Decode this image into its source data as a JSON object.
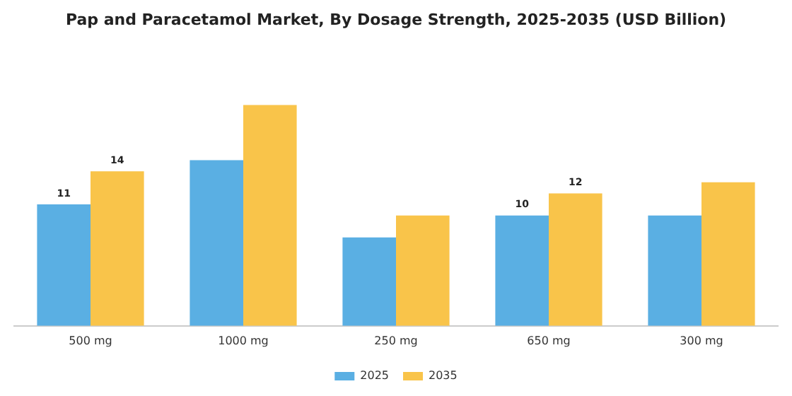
{
  "chart_data": {
    "type": "bar",
    "title": "Pap and Paracetamol Market, By Dosage Strength, 2025-2035 (USD Billion)",
    "categories": [
      "500 mg",
      "1000 mg",
      "250 mg",
      "650 mg",
      "300 mg"
    ],
    "series": [
      {
        "name": "2025",
        "color": "#5aafe3",
        "values": [
          11,
          15,
          8,
          10,
          10
        ],
        "value_labels": [
          "11",
          null,
          null,
          "10",
          null
        ]
      },
      {
        "name": "2035",
        "color": "#f9c44a",
        "values": [
          14,
          20,
          10,
          12,
          13
        ],
        "value_labels": [
          "14",
          null,
          null,
          "12",
          null
        ]
      }
    ],
    "grid": false,
    "legend": "bottom",
    "tick_labels": "x"
  }
}
